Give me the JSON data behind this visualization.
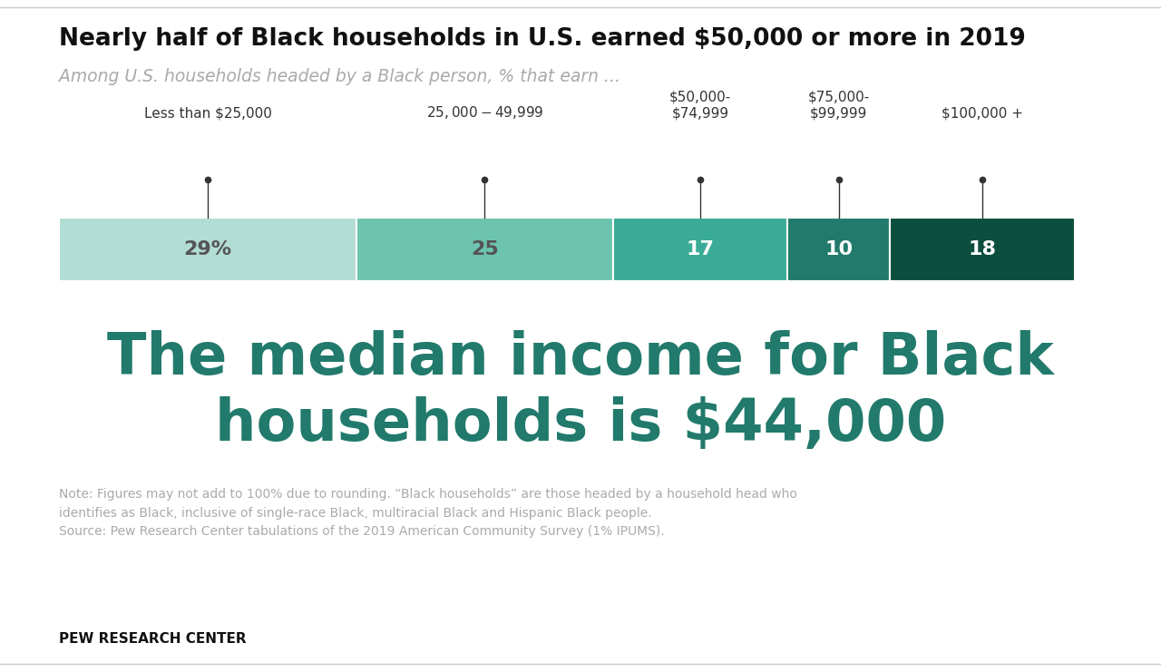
{
  "title": "Nearly half of Black households in U.S. earned $50,000 or more in 2019",
  "subtitle": "Among U.S. households headed by a Black person, % that earn ...",
  "segments": [
    29,
    25,
    17,
    10,
    18
  ],
  "labels": [
    "29%",
    "25",
    "17",
    "10",
    "18"
  ],
  "colors": [
    "#b2ddd4",
    "#6cc4af",
    "#3aab97",
    "#217a6b",
    "#0d4f3f"
  ],
  "label_text_colors": [
    "#555555",
    "#555555",
    "#ffffff",
    "#ffffff",
    "#ffffff"
  ],
  "category_labels": [
    "Less than $25,000",
    "$25,000-$49,999",
    "$50,000-\n$74,999",
    "$75,000-\n$99,999",
    "$100,000 +"
  ],
  "median_text_line1": "The median income for Black",
  "median_text_line2": "households is $44,000",
  "median_color": "#217a6b",
  "note_text": "Note: Figures may not add to 100% due to rounding. “Black households” are those headed by a household head who\nidentifies as Black, inclusive of single-race Black, multiracial Black and Hispanic Black people.\nSource: Pew Research Center tabulations of the 2019 American Community Survey (1% IPUMS).",
  "source_label": "PEW RESEARCH CENTER",
  "bg_color": "#ffffff"
}
